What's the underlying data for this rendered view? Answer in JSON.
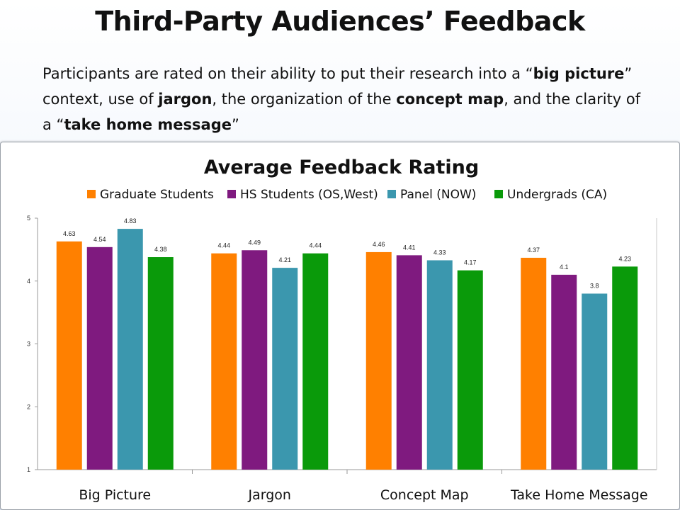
{
  "slide": {
    "title": "Third-Party Audiences’ Feedback",
    "description": [
      {
        "t": "Participants are rated on their ability to put their research into a “"
      },
      {
        "t": "big picture",
        "b": true
      },
      {
        "t": "” context, use of "
      },
      {
        "t": "jargon",
        "b": true
      },
      {
        "t": ", the organization of the "
      },
      {
        "t": "concept map",
        "b": true
      },
      {
        "t": ", and the clarity of a “"
      },
      {
        "t": "take home message",
        "b": true
      },
      {
        "t": "”"
      }
    ]
  },
  "chart_data": {
    "type": "bar",
    "title": "Average Feedback Rating",
    "xlabel": "",
    "ylabel": "",
    "ylim": [
      1,
      5
    ],
    "yticks": [
      1,
      2,
      3,
      4,
      5
    ],
    "grid": false,
    "legend": "top",
    "categories": [
      "Big Picture",
      "Jargon",
      "Concept Map",
      "Take Home Message"
    ],
    "series": [
      {
        "name": "Graduate Students",
        "color": "#ff8000",
        "values": [
          4.63,
          4.44,
          4.46,
          4.37
        ]
      },
      {
        "name": "HS Students (OS,West)",
        "color": "#7f1a7f",
        "values": [
          4.54,
          4.49,
          4.41,
          4.1
        ]
      },
      {
        "name": "Panel (NOW)",
        "color": "#3b97ae",
        "values": [
          4.83,
          4.21,
          4.33,
          3.8
        ]
      },
      {
        "name": "Undergrads (CA)",
        "color": "#0a9a0a",
        "values": [
          4.38,
          4.44,
          4.17,
          4.23
        ]
      }
    ]
  }
}
